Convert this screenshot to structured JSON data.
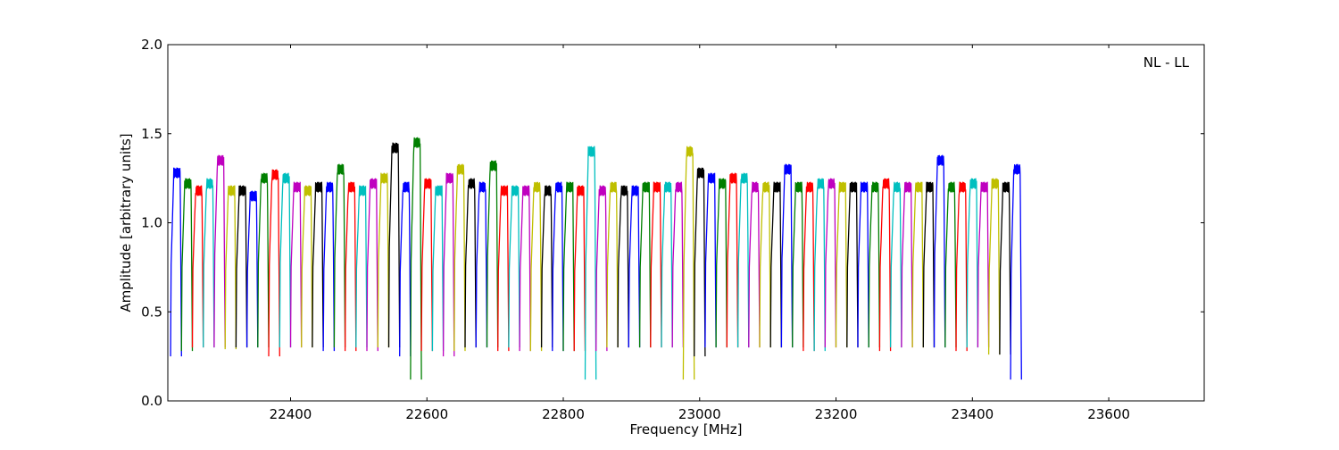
{
  "chart_data": {
    "type": "line",
    "title": "",
    "annotation": "NL - LL",
    "xlabel": "Frequency [MHz]",
    "ylabel": "Amplitude [arbitrary units]",
    "xlim": [
      22220,
      23740
    ],
    "ylim": [
      0.0,
      2.0
    ],
    "xticks": [
      22400,
      22600,
      22800,
      23000,
      23200,
      23400,
      23600
    ],
    "xtick_labels": [
      "22400",
      "22600",
      "22800",
      "23000",
      "23200",
      "23400",
      "23600"
    ],
    "yticks": [
      0.0,
      0.5,
      1.0,
      1.5,
      2.0
    ],
    "ytick_labels": [
      "0.0",
      "0.5",
      "1.0",
      "1.5",
      "2.0"
    ],
    "grid": false,
    "color_cycle": [
      "#0000ff",
      "#007f00",
      "#ff0000",
      "#00bfbf",
      "#bf00bf",
      "#bfbf00",
      "#000000"
    ],
    "band_width_mhz": 16,
    "series": [
      {
        "start": 22224,
        "color": "#0000ff",
        "level": 1.28,
        "min": 0.25
      },
      {
        "start": 22240,
        "color": "#007f00",
        "level": 1.22,
        "min": 0.28
      },
      {
        "start": 22256,
        "color": "#ff0000",
        "level": 1.18,
        "min": 0.3
      },
      {
        "start": 22272,
        "color": "#00bfbf",
        "level": 1.22,
        "min": 0.3
      },
      {
        "start": 22288,
        "color": "#bf00bf",
        "level": 1.35,
        "min": 0.3
      },
      {
        "start": 22304,
        "color": "#bfbf00",
        "level": 1.18,
        "min": 0.29
      },
      {
        "start": 22320,
        "color": "#000000",
        "level": 1.18,
        "min": 0.3
      },
      {
        "start": 22336,
        "color": "#0000ff",
        "level": 1.15,
        "min": 0.3
      },
      {
        "start": 22352,
        "color": "#007f00",
        "level": 1.25,
        "min": 0.3
      },
      {
        "start": 22368,
        "color": "#ff0000",
        "level": 1.27,
        "min": 0.25
      },
      {
        "start": 22384,
        "color": "#00bfbf",
        "level": 1.25,
        "min": 0.3
      },
      {
        "start": 22400,
        "color": "#bf00bf",
        "level": 1.2,
        "min": 0.3
      },
      {
        "start": 22416,
        "color": "#bfbf00",
        "level": 1.18,
        "min": 0.3
      },
      {
        "start": 22432,
        "color": "#000000",
        "level": 1.2,
        "min": 0.3
      },
      {
        "start": 22448,
        "color": "#0000ff",
        "level": 1.2,
        "min": 0.28
      },
      {
        "start": 22464,
        "color": "#007f00",
        "level": 1.3,
        "min": 0.3
      },
      {
        "start": 22480,
        "color": "#ff0000",
        "level": 1.2,
        "min": 0.28
      },
      {
        "start": 22496,
        "color": "#00bfbf",
        "level": 1.18,
        "min": 0.3
      },
      {
        "start": 22512,
        "color": "#bf00bf",
        "level": 1.22,
        "min": 0.28
      },
      {
        "start": 22528,
        "color": "#bfbf00",
        "level": 1.25,
        "min": 0.3
      },
      {
        "start": 22544,
        "color": "#000000",
        "level": 1.42,
        "min": 0.3
      },
      {
        "start": 22560,
        "color": "#0000ff",
        "level": 1.2,
        "min": 0.25
      },
      {
        "start": 22576,
        "color": "#007f00",
        "level": 1.45,
        "min": 0.12
      },
      {
        "start": 22592,
        "color": "#ff0000",
        "level": 1.22,
        "min": 0.28
      },
      {
        "start": 22608,
        "color": "#00bfbf",
        "level": 1.18,
        "min": 0.28
      },
      {
        "start": 22624,
        "color": "#bf00bf",
        "level": 1.25,
        "min": 0.25
      },
      {
        "start": 22640,
        "color": "#bfbf00",
        "level": 1.3,
        "min": 0.28
      },
      {
        "start": 22656,
        "color": "#000000",
        "level": 1.22,
        "min": 0.3
      },
      {
        "start": 22672,
        "color": "#0000ff",
        "level": 1.2,
        "min": 0.3
      },
      {
        "start": 22688,
        "color": "#007f00",
        "level": 1.32,
        "min": 0.3
      },
      {
        "start": 22704,
        "color": "#ff0000",
        "level": 1.18,
        "min": 0.28
      },
      {
        "start": 22720,
        "color": "#00bfbf",
        "level": 1.18,
        "min": 0.3
      },
      {
        "start": 22736,
        "color": "#bf00bf",
        "level": 1.18,
        "min": 0.28
      },
      {
        "start": 22752,
        "color": "#bfbf00",
        "level": 1.2,
        "min": 0.28
      },
      {
        "start": 22768,
        "color": "#000000",
        "level": 1.18,
        "min": 0.3
      },
      {
        "start": 22784,
        "color": "#0000ff",
        "level": 1.2,
        "min": 0.28
      },
      {
        "start": 22800,
        "color": "#007f00",
        "level": 1.2,
        "min": 0.28
      },
      {
        "start": 22816,
        "color": "#ff0000",
        "level": 1.18,
        "min": 0.28
      },
      {
        "start": 22832,
        "color": "#00bfbf",
        "level": 1.4,
        "min": 0.12
      },
      {
        "start": 22848,
        "color": "#bf00bf",
        "level": 1.18,
        "min": 0.28
      },
      {
        "start": 22864,
        "color": "#bfbf00",
        "level": 1.2,
        "min": 0.3
      },
      {
        "start": 22880,
        "color": "#000000",
        "level": 1.18,
        "min": 0.3
      },
      {
        "start": 22896,
        "color": "#0000ff",
        "level": 1.18,
        "min": 0.3
      },
      {
        "start": 22912,
        "color": "#007f00",
        "level": 1.2,
        "min": 0.3
      },
      {
        "start": 22928,
        "color": "#ff0000",
        "level": 1.2,
        "min": 0.3
      },
      {
        "start": 22944,
        "color": "#00bfbf",
        "level": 1.2,
        "min": 0.3
      },
      {
        "start": 22960,
        "color": "#bf00bf",
        "level": 1.2,
        "min": 0.3
      },
      {
        "start": 22976,
        "color": "#bfbf00",
        "level": 1.4,
        "min": 0.12
      },
      {
        "start": 22992,
        "color": "#000000",
        "level": 1.28,
        "min": 0.25
      },
      {
        "start": 23008,
        "color": "#0000ff",
        "level": 1.25,
        "min": 0.3
      },
      {
        "start": 23024,
        "color": "#007f00",
        "level": 1.22,
        "min": 0.3
      },
      {
        "start": 23040,
        "color": "#ff0000",
        "level": 1.25,
        "min": 0.3
      },
      {
        "start": 23056,
        "color": "#00bfbf",
        "level": 1.25,
        "min": 0.3
      },
      {
        "start": 23072,
        "color": "#bf00bf",
        "level": 1.2,
        "min": 0.3
      },
      {
        "start": 23088,
        "color": "#bfbf00",
        "level": 1.2,
        "min": 0.3
      },
      {
        "start": 23104,
        "color": "#000000",
        "level": 1.2,
        "min": 0.3
      },
      {
        "start": 23120,
        "color": "#0000ff",
        "level": 1.3,
        "min": 0.3
      },
      {
        "start": 23136,
        "color": "#007f00",
        "level": 1.2,
        "min": 0.3
      },
      {
        "start": 23152,
        "color": "#ff0000",
        "level": 1.2,
        "min": 0.28
      },
      {
        "start": 23168,
        "color": "#00bfbf",
        "level": 1.22,
        "min": 0.28
      },
      {
        "start": 23184,
        "color": "#bf00bf",
        "level": 1.22,
        "min": 0.3
      },
      {
        "start": 23200,
        "color": "#bfbf00",
        "level": 1.2,
        "min": 0.3
      },
      {
        "start": 23216,
        "color": "#000000",
        "level": 1.2,
        "min": 0.3
      },
      {
        "start": 23232,
        "color": "#0000ff",
        "level": 1.2,
        "min": 0.3
      },
      {
        "start": 23248,
        "color": "#007f00",
        "level": 1.2,
        "min": 0.3
      },
      {
        "start": 23264,
        "color": "#ff0000",
        "level": 1.22,
        "min": 0.28
      },
      {
        "start": 23280,
        "color": "#00bfbf",
        "level": 1.2,
        "min": 0.3
      },
      {
        "start": 23296,
        "color": "#bf00bf",
        "level": 1.2,
        "min": 0.3
      },
      {
        "start": 23312,
        "color": "#bfbf00",
        "level": 1.2,
        "min": 0.3
      },
      {
        "start": 23328,
        "color": "#000000",
        "level": 1.2,
        "min": 0.3
      },
      {
        "start": 23344,
        "color": "#0000ff",
        "level": 1.35,
        "min": 0.3
      },
      {
        "start": 23360,
        "color": "#007f00",
        "level": 1.2,
        "min": 0.3
      },
      {
        "start": 23376,
        "color": "#ff0000",
        "level": 1.2,
        "min": 0.28
      },
      {
        "start": 23392,
        "color": "#00bfbf",
        "level": 1.22,
        "min": 0.3
      },
      {
        "start": 23408,
        "color": "#bf00bf",
        "level": 1.2,
        "min": 0.3
      },
      {
        "start": 23424,
        "color": "#bfbf00",
        "level": 1.22,
        "min": 0.26
      },
      {
        "start": 23440,
        "color": "#000000",
        "level": 1.2,
        "min": 0.26
      },
      {
        "start": 23456,
        "color": "#0000ff",
        "level": 1.3,
        "min": 0.12
      }
    ]
  }
}
